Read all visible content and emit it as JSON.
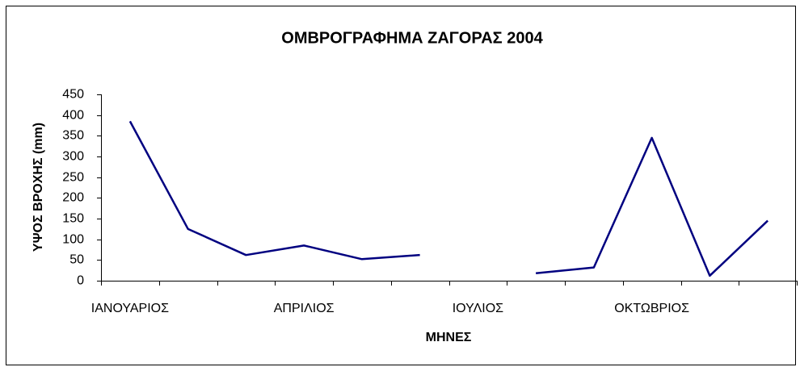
{
  "chart_data": {
    "type": "line",
    "title": "ΟΜΒΡΟΓΡΑΦΗΜΑ ΖΑΓΟΡΑΣ 2004",
    "x_label": "ΜΗΝΕΣ",
    "y_label": "ΥΨΟΣ ΒΡΟΧΗΣ (mm)",
    "categories": [
      "ΙΑΝΟΥΑΡΙΟΣ",
      null,
      null,
      "ΑΠΡΙΛΙΟΣ",
      null,
      null,
      "ΙΟΥΛΙΟΣ",
      null,
      null,
      "ΟΚΤΩΒΡΙΟΣ",
      null,
      null
    ],
    "values": [
      385,
      125,
      62,
      85,
      52,
      62,
      null,
      18,
      32,
      345,
      12,
      145
    ],
    "color": "#000080",
    "ylim": [
      0,
      450
    ],
    "yticks": [
      0,
      50,
      100,
      150,
      200,
      250,
      300,
      350,
      400,
      450
    ]
  }
}
